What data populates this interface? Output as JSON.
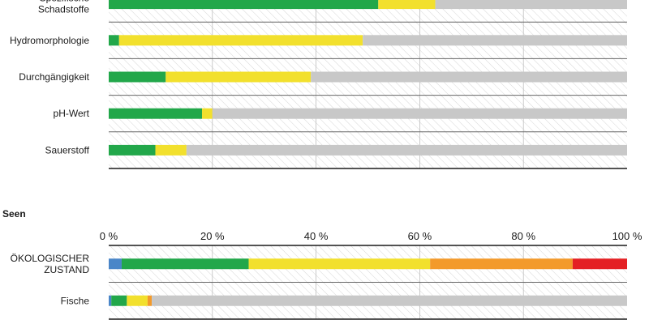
{
  "chart_data": [
    {
      "type": "bar",
      "orientation": "horizontal",
      "stacked": true,
      "x_unit": "%",
      "xlim": [
        0,
        100
      ],
      "grid": true,
      "categories": [
        "Spezifische Schadstoffe",
        "Hydromorphologie",
        "Durchgängigkeit",
        "pH-Wert",
        "Sauerstoff"
      ],
      "series": [
        {
          "color": "#22a74a",
          "values": [
            52,
            2,
            11,
            18,
            9
          ]
        },
        {
          "color": "#f2e02d",
          "values": [
            11,
            47,
            28,
            2,
            6
          ]
        },
        {
          "color": "#c8c8c8",
          "values": [
            37,
            51,
            61,
            80,
            85
          ]
        }
      ]
    },
    {
      "type": "bar",
      "orientation": "horizontal",
      "stacked": true,
      "title": "Seen",
      "x_unit": "%",
      "xlim": [
        0,
        100
      ],
      "xticks": [
        "0 %",
        "20 %",
        "40 %",
        "60 %",
        "80 %",
        "100 %"
      ],
      "grid": true,
      "categories": [
        "ÖKOLOGISCHER ZUSTAND",
        "Fische"
      ],
      "series": [
        {
          "color": "#4a86c8",
          "values": [
            2.5,
            0.5
          ]
        },
        {
          "color": "#22a74a",
          "values": [
            24.5,
            3
          ]
        },
        {
          "color": "#f2e02d",
          "values": [
            35,
            4
          ]
        },
        {
          "color": "#f39a2b",
          "values": [
            27.5,
            0.8
          ]
        },
        {
          "color": "#e42024",
          "values": [
            10.5,
            0
          ]
        },
        {
          "color": "#c8c8c8",
          "values": [
            0,
            91.7
          ]
        }
      ]
    }
  ]
}
